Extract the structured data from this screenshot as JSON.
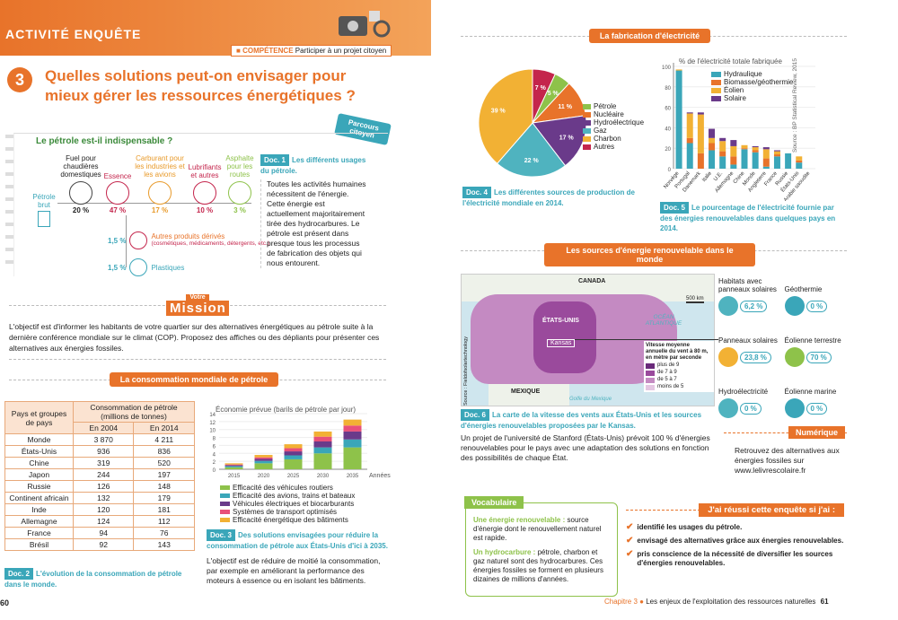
{
  "left": {
    "activity": "ACTIVITÉ ENQUÊTE",
    "competence_label": "COMPÉTENCE",
    "competence_text": "Participer à un projet citoyen",
    "number": "3",
    "title": "Quelles solutions peut-on envisager pour mieux gérer les ressources énergétiques ?",
    "parcours": "Parcours citoyen",
    "section_title": "Le pétrole est-il indispensable ?",
    "flow": {
      "brut": "Pétrole brut",
      "cols": [
        {
          "label": "Fuel pour chaudières domestiques",
          "pct": "20 %"
        },
        {
          "label": "Essence",
          "pct": "47 %"
        },
        {
          "label": "Carburant pour les industries et les avions",
          "pct": "17 %"
        },
        {
          "label": "Lubrifiants et autres",
          "pct": "10 %"
        },
        {
          "label": "Asphalte pour les routes",
          "pct": "3 %"
        }
      ],
      "derived_pct": "1,5 %",
      "derived_label": "Autres produits dérivés",
      "derived_sub": "(cosmétiques, médicaments, détergents, etc.)",
      "plastic_pct": "1,5 %",
      "plastic_label": "Plastiques"
    },
    "doc1_badge": "Doc. 1",
    "doc1_title": "Les différents usages du pétrole.",
    "doc1_text": "Toutes les activités humaines nécessitent de l'énergie. Cette énergie est actuellement majoritairement tirée des hydrocarbures. Le pétrole est présent dans presque tous les processus de fabrication des objets qui nous entourent.",
    "mission_top": "Votre",
    "mission": "Mission",
    "mission_text": "L'objectif est d'informer les habitants de votre quartier sur des alternatives énergétiques au pétrole suite à la dernière conférence mondiale sur le climat (COP). Proposez des affiches ou des dépliants pour présenter ces alternatives aux énergies fossiles.",
    "conso_banner": "La consommation mondiale de pétrole",
    "table": {
      "h1": "Pays et groupes de pays",
      "h2": "Consommation de pétrole (millions de tonnes)",
      "y1": "En 2004",
      "y2": "En 2014",
      "rows": [
        [
          "Monde",
          "3 870",
          "4 211"
        ],
        [
          "États-Unis",
          "936",
          "836"
        ],
        [
          "Chine",
          "319",
          "520"
        ],
        [
          "Japon",
          "244",
          "197"
        ],
        [
          "Russie",
          "126",
          "148"
        ],
        [
          "Continent africain",
          "132",
          "179"
        ],
        [
          "Inde",
          "120",
          "181"
        ],
        [
          "Allemagne",
          "124",
          "112"
        ],
        [
          "France",
          "94",
          "76"
        ],
        [
          "Brésil",
          "92",
          "143"
        ]
      ]
    },
    "doc2_badge": "Doc. 2",
    "doc2_title": "L'évolution de la consommation de pétrole dans le monde.",
    "doc3_badge": "Doc. 3",
    "doc3_title": "Des solutions envisagées pour réduire la consommation de pétrole aux États-Unis d'ici à 2035.",
    "doc3_text": "L'objectif est de réduire de moitié la consommation, par exemple en améliorant la performance des moteurs à essence ou en isolant les bâtiments.",
    "page": "60"
  },
  "right": {
    "fab_banner": "La fabrication d'électricité",
    "doc4_badge": "Doc. 4",
    "doc4_title": "Les différentes sources de production de l'électricité mondiale en 2014.",
    "doc5_badge": "Doc. 5",
    "doc5_title": "Le pourcentage de l'électricité fournie par des énergies renouvelables dans quelques pays en 2014.",
    "bar_source": "Source : BP Statistical Review, 2015",
    "renew_banner": "Les sources d'énergie renouvelable dans le monde",
    "map": {
      "canada": "CANADA",
      "usa": "ÉTATS-UNIS",
      "mexique": "MEXIQUE",
      "kansas": "Kansas",
      "ocean": "OCÉAN ATLANTIQUE",
      "golfe": "Golfe du Mexique",
      "scale": "500 km",
      "source": "Source : Fieldofsolartechnology",
      "legend_title": "Vitesse moyenne annuelle du vent à 80 m, en mètre par seconde",
      "legend": [
        "plus de 9",
        "de 7 à 9",
        "de 5 à 7",
        "moins de 5"
      ],
      "legend_colors": [
        "#6a2a7a",
        "#9a4a9c",
        "#c48ac2",
        "#e4c6e2"
      ]
    },
    "energy_cards": [
      {
        "label": "Habitats avec panneaux solaires",
        "pct": "6,2 %"
      },
      {
        "label": "Géothermie",
        "pct": "0 %"
      },
      {
        "label": "Panneaux solaires",
        "pct": "23,8 %"
      },
      {
        "label": "Éolienne terrestre",
        "pct": "70 %"
      },
      {
        "label": "Hydroélectricité",
        "pct": "0 %"
      },
      {
        "label": "Éolienne marine",
        "pct": "0 %"
      }
    ],
    "doc6_badge": "Doc. 6",
    "doc6_title": "La carte de la vitesse des vents aux États-Unis et les sources d'énergies renouvelables proposées par le Kansas.",
    "doc6_text": "Un projet de l'université de Stanford (États-Unis) prévoit 100 % d'énergies renouvelables pour le pays avec une adaptation des solutions en fonction des possibilités de chaque État.",
    "numerique": "Numérique",
    "numerique_text": "Retrouvez des alternatives aux énergies fossiles sur www.lelivrescolaire.fr",
    "vocab": "Vocabulaire",
    "vocab_t1": "Une énergie renouvelable :",
    "vocab_d1": "source d'énergie dont le renouvellement naturel est rapide.",
    "vocab_t2": "Un hydrocarbure :",
    "vocab_d2": "pétrole, charbon et gaz naturel sont des hydrocarbures. Ces énergies fossiles se forment en plusieurs dizaines de millions d'années.",
    "reussi": "J'ai réussi cette enquête si j'ai :",
    "checks": [
      "identifié les usages du pétrole.",
      "envisagé des alternatives grâce aux énergies renouvelables.",
      "pris conscience de la nécessité de diversifier les sources d'énergies renouvelables."
    ],
    "footer_chap": "Chapitre 3",
    "footer_text": "Les enjeux de l'exploitation des ressources naturelles",
    "page": "61"
  },
  "chart_data": [
    {
      "type": "pie",
      "labels": [
        "Pétrole",
        "Nucléaire",
        "Hydroélectrique",
        "Gaz",
        "Charbon",
        "Autres"
      ],
      "values": [
        5,
        11,
        17,
        22,
        39,
        7
      ],
      "colors": [
        "#8ec24a",
        "#e8732a",
        "#6a3a8a",
        "#4fb3bf",
        "#f2b134",
        "#c4254c"
      ]
    },
    {
      "type": "bar",
      "title": "% de l'électricité totale fabriquée",
      "categories": [
        "Norvège",
        "Portugal",
        "Danemark",
        "Italie",
        "U.E.",
        "Allemagne",
        "Chine",
        "Monde",
        "Angleterre",
        "France",
        "Russie",
        "États-Unis",
        "Arabie saoudite"
      ],
      "series": [
        {
          "name": "Hydraulique",
          "values": [
            96,
            25,
            0,
            18,
            12,
            4,
            19,
            16,
            2,
            12,
            15,
            6,
            0
          ]
        },
        {
          "name": "Biomasse/géothermie",
          "values": [
            0,
            5,
            15,
            7,
            5,
            8,
            1,
            2,
            8,
            2,
            0,
            2,
            0
          ]
        },
        {
          "name": "Éolien",
          "values": [
            1,
            24,
            38,
            5,
            10,
            10,
            3,
            3,
            9,
            3,
            0,
            4,
            0
          ]
        },
        {
          "name": "Solaire",
          "values": [
            0,
            1,
            2,
            9,
            3,
            6,
            0,
            1,
            2,
            1,
            0,
            0,
            0
          ]
        }
      ],
      "colors": [
        "#3aa6b9",
        "#e8732a",
        "#f2b134",
        "#6a3a8a"
      ],
      "ylim": [
        0,
        100
      ],
      "yticks": [
        "0",
        "20",
        "40",
        "60",
        "80",
        "100"
      ],
      "grid": true,
      "legend": "top-left"
    },
    {
      "type": "bar",
      "title": "Économie prévue (barils de pétrole par jour)",
      "categories": [
        "2015",
        "2020",
        "2025",
        "2030",
        "2035"
      ],
      "xlabel": "Années",
      "series": [
        {
          "name": "Efficacité des véhicules routiers",
          "values": [
            0.5,
            1.5,
            2.5,
            4.0,
            5.5
          ]
        },
        {
          "name": "Efficacité des avions, trains et bateaux",
          "values": [
            0.3,
            0.6,
            1.0,
            1.5,
            2.0
          ]
        },
        {
          "name": "Véhicules électriques et biocarburants",
          "values": [
            0.2,
            0.5,
            1.0,
            1.5,
            2.0
          ]
        },
        {
          "name": "Systèmes de transport optimisés",
          "values": [
            0.2,
            0.4,
            0.8,
            1.2,
            1.5
          ]
        },
        {
          "name": "Efficacité énergétique des bâtiments",
          "values": [
            0.3,
            0.6,
            1.0,
            1.3,
            1.5
          ]
        }
      ],
      "colors": [
        "#8ec24a",
        "#3aa6b9",
        "#6a3a8a",
        "#e8507a",
        "#f2b134"
      ],
      "ylim": [
        0,
        14
      ],
      "yticks": [
        "0",
        "2",
        "4",
        "6",
        "8",
        "10",
        "12",
        "14"
      ]
    }
  ]
}
